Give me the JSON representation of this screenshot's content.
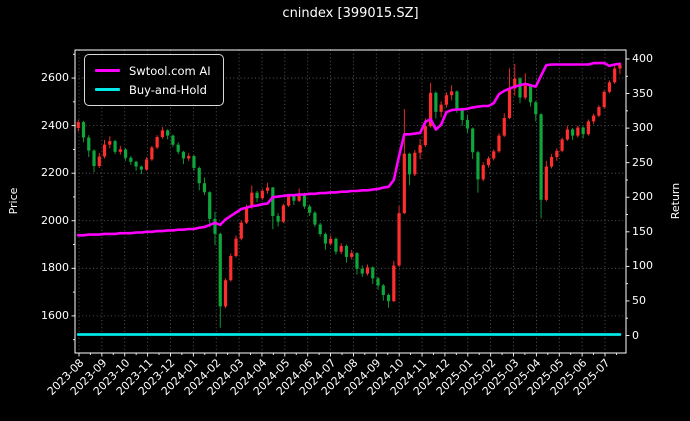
{
  "title": "cnindex [399015.SZ]",
  "legend": {
    "items": [
      {
        "label": "Swtool.com AI",
        "color": "#ff00ff"
      },
      {
        "label": "Buy-and-Hold",
        "color": "#00e8e8"
      }
    ]
  },
  "axes": {
    "x": {
      "tick_labels": [
        "2023-08",
        "2023-09",
        "2023-10",
        "2023-11",
        "2023-12",
        "2024-01",
        "2024-02",
        "2024-03",
        "2024-04",
        "2024-05",
        "2024-06",
        "2024-07",
        "2024-08",
        "2024-09",
        "2024-10",
        "2024-11",
        "2024-12",
        "2025-01",
        "2025-02",
        "2025-03",
        "2025-04",
        "2025-05",
        "2025-06",
        "2025-07"
      ]
    },
    "y_left": {
      "label": "Price",
      "ticks": [
        1600,
        1800,
        2000,
        2200,
        2400,
        2600
      ],
      "minor_ticks": [
        1500,
        1700,
        1900,
        2100,
        2300,
        2500,
        2700
      ]
    },
    "y_right": {
      "label": "Return",
      "ticks": [
        0,
        50,
        100,
        150,
        200,
        250,
        300,
        350,
        400
      ],
      "minor_ticks": [
        25,
        75,
        125,
        175,
        225,
        275,
        325,
        375
      ]
    }
  },
  "chart_data": {
    "type": "candlestick",
    "title": "cnindex [399015.SZ]",
    "background": "#000000",
    "grid": "dotted",
    "grid_color": "#8a8a8a",
    "up_color": "#ff2e2e",
    "down_color": "#0fa73c",
    "ylim_price": [
      1444,
      2718
    ],
    "ylim_return": [
      -25.3,
      413
    ],
    "dates": [
      "2023-07-31",
      "2023-08-07",
      "2023-08-14",
      "2023-08-21",
      "2023-08-28",
      "2023-09-04",
      "2023-09-11",
      "2023-09-18",
      "2023-09-25",
      "2023-10-02",
      "2023-10-09",
      "2023-10-16",
      "2023-10-23",
      "2023-10-30",
      "2023-11-06",
      "2023-11-13",
      "2023-11-20",
      "2023-11-27",
      "2023-12-04",
      "2023-12-11",
      "2023-12-18",
      "2023-12-25",
      "2024-01-01",
      "2024-01-08",
      "2024-01-15",
      "2024-01-22",
      "2024-01-29",
      "2024-02-05",
      "2024-02-12",
      "2024-02-19",
      "2024-02-26",
      "2024-03-04",
      "2024-03-11",
      "2024-03-18",
      "2024-03-25",
      "2024-04-01",
      "2024-04-08",
      "2024-04-15",
      "2024-04-22",
      "2024-04-29",
      "2024-05-06",
      "2024-05-13",
      "2024-05-20",
      "2024-05-27",
      "2024-06-03",
      "2024-06-10",
      "2024-06-17",
      "2024-06-24",
      "2024-07-01",
      "2024-07-08",
      "2024-07-15",
      "2024-07-22",
      "2024-07-29",
      "2024-08-05",
      "2024-08-12",
      "2024-08-19",
      "2024-08-26",
      "2024-09-02",
      "2024-09-09",
      "2024-09-16",
      "2024-09-23",
      "2024-09-30",
      "2024-10-07",
      "2024-10-14",
      "2024-10-21",
      "2024-10-28",
      "2024-11-04",
      "2024-11-11",
      "2024-11-18",
      "2024-11-25",
      "2024-12-02",
      "2024-12-09",
      "2024-12-16",
      "2024-12-23",
      "2024-12-30",
      "2025-01-06",
      "2025-01-13",
      "2025-01-20",
      "2025-01-27",
      "2025-02-03",
      "2025-02-10",
      "2025-02-17",
      "2025-02-24",
      "2025-03-03",
      "2025-03-10",
      "2025-03-17",
      "2025-03-24",
      "2025-03-31",
      "2025-04-07",
      "2025-04-14",
      "2025-04-21",
      "2025-04-28",
      "2025-05-05",
      "2025-05-12",
      "2025-05-19",
      "2025-05-26",
      "2025-06-02",
      "2025-06-09",
      "2025-06-16",
      "2025-06-23",
      "2025-06-30",
      "2025-07-07",
      "2025-07-14",
      "2025-07-21"
    ],
    "ohlc": [
      [
        2390,
        2425,
        2375,
        2415
      ],
      [
        2415,
        2420,
        2330,
        2350
      ],
      [
        2350,
        2360,
        2268,
        2295
      ],
      [
        2295,
        2300,
        2205,
        2230
      ],
      [
        2230,
        2285,
        2222,
        2270
      ],
      [
        2270,
        2340,
        2262,
        2320
      ],
      [
        2320,
        2355,
        2305,
        2335
      ],
      [
        2335,
        2340,
        2280,
        2290
      ],
      [
        2290,
        2315,
        2278,
        2300
      ],
      [
        2300,
        2305,
        2252,
        2265
      ],
      [
        2265,
        2272,
        2235,
        2248
      ],
      [
        2248,
        2252,
        2210,
        2228
      ],
      [
        2228,
        2232,
        2196,
        2215
      ],
      [
        2215,
        2268,
        2210,
        2258
      ],
      [
        2258,
        2315,
        2252,
        2308
      ],
      [
        2308,
        2360,
        2302,
        2352
      ],
      [
        2352,
        2395,
        2345,
        2380
      ],
      [
        2380,
        2385,
        2342,
        2358
      ],
      [
        2358,
        2362,
        2310,
        2320
      ],
      [
        2320,
        2330,
        2280,
        2290
      ],
      [
        2290,
        2294,
        2238,
        2262
      ],
      [
        2262,
        2284,
        2252,
        2272
      ],
      [
        2272,
        2276,
        2210,
        2222
      ],
      [
        2222,
        2228,
        2128,
        2158
      ],
      [
        2158,
        2182,
        2108,
        2120
      ],
      [
        2120,
        2124,
        1972,
        2008
      ],
      [
        2008,
        2038,
        1898,
        1945
      ],
      [
        1945,
        1950,
        1550,
        1640
      ],
      [
        1640,
        1758,
        1632,
        1750
      ],
      [
        1750,
        1862,
        1744,
        1852
      ],
      [
        1852,
        1938,
        1846,
        1925
      ],
      [
        1925,
        2002,
        1918,
        1992
      ],
      [
        1992,
        2068,
        1986,
        2058
      ],
      [
        2058,
        2148,
        2050,
        2118
      ],
      [
        2118,
        2126,
        2078,
        2095
      ],
      [
        2095,
        2134,
        2088,
        2126
      ],
      [
        2126,
        2160,
        2114,
        2140
      ],
      [
        2140,
        2142,
        1965,
        2020
      ],
      [
        2020,
        2032,
        1976,
        1996
      ],
      [
        1996,
        2072,
        1990,
        2064
      ],
      [
        2064,
        2112,
        2058,
        2104
      ],
      [
        2104,
        2110,
        2066,
        2084
      ],
      [
        2084,
        2136,
        2078,
        2114
      ],
      [
        2114,
        2118,
        2050,
        2060
      ],
      [
        2060,
        2068,
        2020,
        2034
      ],
      [
        2034,
        2040,
        1974,
        1984
      ],
      [
        1984,
        1992,
        1934,
        1944
      ],
      [
        1944,
        1950,
        1878,
        1904
      ],
      [
        1904,
        1938,
        1896,
        1924
      ],
      [
        1924,
        1930,
        1858,
        1870
      ],
      [
        1870,
        1906,
        1860,
        1894
      ],
      [
        1894,
        1900,
        1824,
        1848
      ],
      [
        1848,
        1878,
        1838,
        1864
      ],
      [
        1864,
        1868,
        1774,
        1798
      ],
      [
        1798,
        1812,
        1764,
        1778
      ],
      [
        1778,
        1816,
        1770,
        1804
      ],
      [
        1804,
        1808,
        1734,
        1758
      ],
      [
        1758,
        1764,
        1710,
        1728
      ],
      [
        1728,
        1734,
        1664,
        1688
      ],
      [
        1688,
        1694,
        1634,
        1662
      ],
      [
        1662,
        1832,
        1658,
        1812
      ],
      [
        1812,
        2062,
        1806,
        2032
      ],
      [
        2032,
        2470,
        2028,
        2282
      ],
      [
        2282,
        2286,
        2150,
        2195
      ],
      [
        2195,
        2298,
        2188,
        2286
      ],
      [
        2286,
        2344,
        2258,
        2318
      ],
      [
        2318,
        2430,
        2310,
        2398
      ],
      [
        2398,
        2580,
        2392,
        2538
      ],
      [
        2538,
        2544,
        2430,
        2458
      ],
      [
        2458,
        2502,
        2436,
        2488
      ],
      [
        2488,
        2540,
        2476,
        2528
      ],
      [
        2528,
        2570,
        2506,
        2544
      ],
      [
        2544,
        2548,
        2454,
        2468
      ],
      [
        2468,
        2476,
        2400,
        2424
      ],
      [
        2424,
        2444,
        2370,
        2388
      ],
      [
        2388,
        2392,
        2260,
        2288
      ],
      [
        2288,
        2294,
        2118,
        2174
      ],
      [
        2174,
        2246,
        2166,
        2234
      ],
      [
        2234,
        2270,
        2224,
        2262
      ],
      [
        2262,
        2300,
        2254,
        2292
      ],
      [
        2292,
        2368,
        2286,
        2358
      ],
      [
        2358,
        2452,
        2352,
        2432
      ],
      [
        2432,
        2640,
        2428,
        2556
      ],
      [
        2556,
        2660,
        2526,
        2598
      ],
      [
        2598,
        2604,
        2494,
        2518
      ],
      [
        2518,
        2620,
        2510,
        2568
      ],
      [
        2568,
        2574,
        2480,
        2498
      ],
      [
        2498,
        2504,
        2418,
        2448
      ],
      [
        2448,
        2452,
        2010,
        2088
      ],
      [
        2088,
        2252,
        2082,
        2228
      ],
      [
        2228,
        2280,
        2220,
        2268
      ],
      [
        2268,
        2304,
        2252,
        2294
      ],
      [
        2294,
        2350,
        2288,
        2342
      ],
      [
        2342,
        2400,
        2336,
        2384
      ],
      [
        2384,
        2390,
        2340,
        2358
      ],
      [
        2358,
        2400,
        2350,
        2392
      ],
      [
        2392,
        2396,
        2346,
        2364
      ],
      [
        2364,
        2426,
        2358,
        2418
      ],
      [
        2418,
        2450,
        2406,
        2442
      ],
      [
        2442,
        2486,
        2436,
        2478
      ],
      [
        2478,
        2548,
        2472,
        2542
      ],
      [
        2542,
        2590,
        2536,
        2582
      ],
      [
        2582,
        2650,
        2576,
        2640
      ],
      [
        2640,
        2666,
        2616,
        2656
      ]
    ],
    "series": [
      {
        "name": "Swtool.com AI",
        "axis": "return",
        "color": "#ff00ff",
        "values": [
          145,
          145,
          146,
          146,
          146,
          147,
          147,
          147,
          148,
          148,
          148,
          149,
          149,
          150,
          150,
          151,
          151,
          152,
          152,
          153,
          153,
          154,
          154,
          156,
          157,
          160,
          163,
          160,
          168,
          173,
          178,
          183,
          185,
          187,
          188,
          190,
          191,
          200,
          201,
          202,
          203,
          203,
          204,
          204,
          205,
          205,
          206,
          206,
          207,
          207,
          208,
          208,
          209,
          209,
          210,
          210,
          211,
          212,
          214,
          215,
          225,
          260,
          291,
          291,
          292,
          293,
          309,
          313,
          298,
          305,
          323,
          326,
          327,
          327,
          328,
          330,
          331,
          332,
          332,
          336,
          349,
          354,
          357,
          360,
          362,
          364,
          362,
          360,
          376,
          391,
          392,
          392,
          392,
          392,
          392,
          392,
          392,
          392,
          394,
          394,
          394,
          390,
          392,
          393
        ]
      },
      {
        "name": "Buy-and-Hold",
        "axis": "return",
        "color": "#00e8e8",
        "flat_value": 1.5
      }
    ]
  }
}
